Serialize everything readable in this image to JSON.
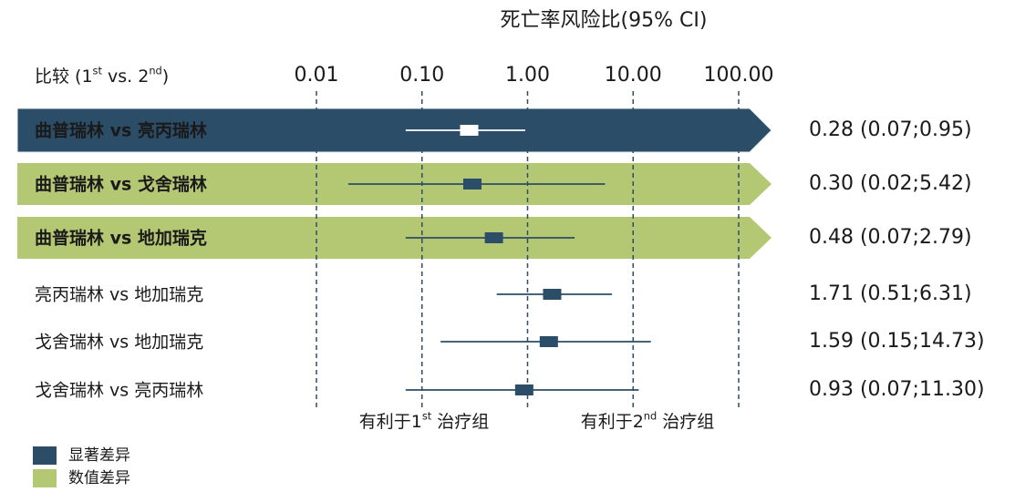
{
  "chart_data": {
    "type": "forest",
    "title": "死亡率风险比(95% CI)",
    "header_parts": [
      "比较 (1",
      "st",
      " vs. 2",
      "nd",
      ")"
    ],
    "xscale": "log",
    "xlim": [
      0.01,
      100
    ],
    "xticks": [
      {
        "value": 0.01,
        "label": "0.01"
      },
      {
        "value": 0.1,
        "label": "0.10"
      },
      {
        "value": 1,
        "label": "1.00"
      },
      {
        "value": 10,
        "label": "10.00"
      },
      {
        "value": 100,
        "label": "100.00"
      }
    ],
    "grid": true,
    "categories": [
      "曲普瑞林 vs 亮丙瑞林",
      "曲普瑞林 vs 戈舍瑞林",
      "曲普瑞林 vs 地加瑞克",
      "亮丙瑞林 vs 地加瑞克",
      "戈舍瑞林 vs 地加瑞克",
      "戈舍瑞林 vs 亮丙瑞林"
    ],
    "values": [
      0.28,
      0.3,
      0.48,
      1.71,
      1.59,
      0.93
    ],
    "lower": [
      0.07,
      0.02,
      0.07,
      0.51,
      0.15,
      0.07
    ],
    "upper": [
      0.95,
      5.42,
      2.79,
      6.31,
      14.73,
      11.3
    ],
    "value_labels": [
      "0.28 (0.07;0.95)",
      "0.30 (0.02;5.42)",
      "0.48 (0.07;2.79)",
      "1.71 (0.51;6.31)",
      "1.59 (0.15;14.73)",
      "0.93 (0.07;11.30)"
    ],
    "groups": [
      0,
      1,
      1,
      null,
      null,
      null
    ],
    "color": "#2c4d67",
    "highlight_marker_color": "#ffffff",
    "legend": [
      {
        "name": "显著差异",
        "color": "#2c4d67"
      },
      {
        "name": "数值差异",
        "color": "#b4c874"
      }
    ],
    "annotations": [
      [
        "有利于1",
        "st",
        " 治疗组"
      ],
      [
        "有利于2",
        "nd",
        " 治疗组"
      ]
    ]
  }
}
